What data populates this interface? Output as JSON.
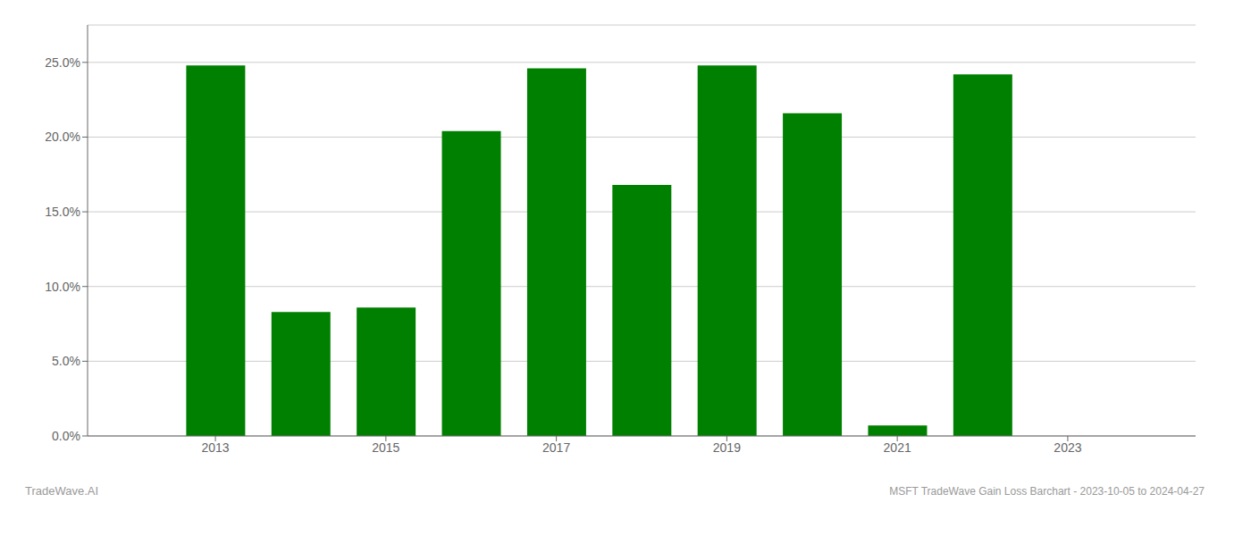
{
  "chart_data": {
    "type": "bar",
    "title": "MSFT TradeWave Gain Loss Barchart - 2023-10-05 to 2024-04-27",
    "annotations": [
      "TradeWave.AI"
    ],
    "x": [
      2013,
      2014,
      2015,
      2016,
      2017,
      2018,
      2019,
      2020,
      2021,
      2022,
      2023
    ],
    "values": [
      0.248,
      0.083,
      0.086,
      0.204,
      0.246,
      0.168,
      0.248,
      0.216,
      0.007,
      0.242,
      0.0
    ],
    "color": "#008000",
    "xlim": [
      2011.5,
      2024.5
    ],
    "xticks": [
      2013,
      2015,
      2017,
      2019,
      2021,
      2023
    ],
    "ylim": [
      0,
      0.275
    ],
    "yticks": [
      {
        "value": 0.0,
        "label": "0.0%"
      },
      {
        "value": 0.05,
        "label": "5.0%"
      },
      {
        "value": 0.1,
        "label": "10.0%"
      },
      {
        "value": 0.15,
        "label": "15.0%"
      },
      {
        "value": 0.2,
        "label": "20.0%"
      },
      {
        "value": 0.25,
        "label": "25.0%"
      }
    ],
    "grid": true
  }
}
